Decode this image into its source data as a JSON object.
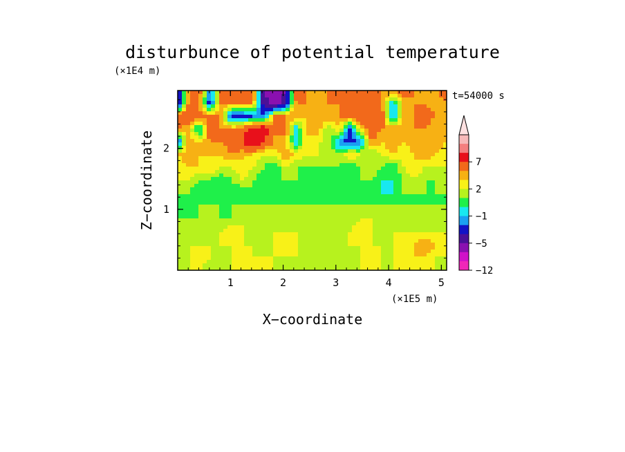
{
  "chart_data": {
    "type": "heatmap",
    "title": "disturbunce of potential temperature",
    "xlabel": "X−coordinate",
    "ylabel": "Z−coordinate",
    "x_unit": "(×1E5 m)",
    "y_unit": "(×1E4 m)",
    "time_label": "t=54000 s",
    "xlim": [
      0,
      5.1
    ],
    "ylim": [
      0,
      2.95
    ],
    "x_ticks": [
      1,
      2,
      3,
      4,
      5
    ],
    "y_ticks": [
      1,
      2
    ],
    "x_minor_step": 0.2,
    "y_minor_step": 0.2,
    "grid": false,
    "legend_position": "right",
    "colorbar": {
      "extend_max": true,
      "labels": [
        {
          "value": "7",
          "level": 7
        },
        {
          "value": "2",
          "level": 2
        },
        {
          "value": "−1",
          "level": -1
        },
        {
          "value": "−5",
          "level": -5
        },
        {
          "value": "−12",
          "level": -12
        }
      ],
      "bins": [
        {
          "upper": 11,
          "color": "#f7b9b9"
        },
        {
          "upper": 9,
          "color": "#f47f7f"
        },
        {
          "upper": 7,
          "color": "#e8101b"
        },
        {
          "upper": 5,
          "color": "#f2691b"
        },
        {
          "upper": 3,
          "color": "#f7b114"
        },
        {
          "upper": 2,
          "color": "#f8f118"
        },
        {
          "upper": 1,
          "color": "#b7f21e"
        },
        {
          "upper": 0,
          "color": "#1ff04a"
        },
        {
          "upper": -1,
          "color": "#18e8f0"
        },
        {
          "upper": -2,
          "color": "#1aa0f2"
        },
        {
          "upper": -3,
          "color": "#1212c6"
        },
        {
          "upper": -5,
          "color": "#4a1098"
        },
        {
          "upper": -7,
          "color": "#8a10b0"
        },
        {
          "upper": -9,
          "color": "#d012c8"
        },
        {
          "upper": -10,
          "color": "#f026b8"
        }
      ],
      "triangle_color": "#fde0e0"
    },
    "field_description": "Height (rows, 0 to 2.95) vs distance (columns, 0 to 5.1) grid of temperature disturbance values; warm near-zero (yellow/orange) lower layer, green/cyan band near Z=1, wavy warm/cold (orange/blue/purple) structures aloft.",
    "grid_nx": 26,
    "grid_nz": 15,
    "values": [
      [
        1,
        1,
        1,
        0,
        1,
        1,
        1,
        1,
        2,
        1,
        1,
        1,
        1,
        0,
        1,
        1,
        1,
        1,
        1,
        1,
        1,
        1,
        1,
        1,
        1,
        1
      ],
      [
        1,
        1,
        2,
        1,
        1,
        1,
        2,
        1,
        1,
        1,
        1,
        1,
        0,
        0,
        1,
        1,
        1,
        1,
        2,
        1,
        1,
        2,
        2,
        2,
        1,
        1
      ],
      [
        1,
        1,
        1,
        1,
        1,
        1,
        1,
        1,
        1,
        1,
        2,
        1,
        1,
        1,
        0,
        1,
        1,
        1,
        1,
        1,
        1,
        2,
        2,
        3,
        2,
        1
      ],
      [
        1,
        1,
        1,
        1,
        1,
        2,
        1,
        1,
        1,
        1,
        1,
        1,
        1,
        1,
        1,
        1,
        1,
        2,
        1,
        1,
        1,
        1,
        1,
        1,
        1,
        1
      ],
      [
        0,
        0,
        0,
        1,
        0,
        0,
        1,
        1,
        1,
        0,
        1,
        1,
        1,
        1,
        1,
        1,
        0,
        1,
        1,
        1,
        1,
        1,
        1,
        1,
        1,
        0
      ],
      [
        0,
        0,
        0,
        0,
        0,
        0,
        0,
        0,
        0,
        0,
        0,
        0,
        0,
        0,
        0,
        0,
        0,
        0,
        0,
        0,
        0,
        0,
        0,
        0,
        0,
        0
      ],
      [
        0,
        0,
        -1,
        -1,
        0,
        -1,
        -1,
        0,
        0,
        0,
        0,
        0,
        0,
        -1,
        0,
        0,
        0,
        -1,
        -1,
        -1,
        -1,
        0,
        0,
        0,
        0,
        0
      ],
      [
        1,
        1,
        0,
        0,
        -1,
        0,
        1,
        0,
        -1,
        0,
        0,
        0,
        0,
        -1,
        0,
        0,
        0,
        0,
        0,
        -1,
        -1,
        0,
        1,
        0,
        0,
        1
      ],
      [
        1,
        2,
        2,
        2,
        1,
        1,
        2,
        1,
        0,
        -1,
        1,
        0,
        0,
        0,
        0,
        0,
        -1,
        0,
        1,
        0,
        -1,
        1,
        2,
        1,
        1,
        1
      ],
      [
        2,
        3,
        2,
        2,
        2,
        3,
        2,
        2,
        1,
        1,
        3,
        2,
        1,
        1,
        1,
        0,
        2,
        1,
        0,
        1,
        2,
        1,
        2,
        3,
        2,
        1
      ],
      [
        -4,
        3,
        2,
        3,
        3,
        4,
        5,
        7,
        5,
        3,
        2,
        -2,
        2,
        1,
        1,
        -3,
        -4,
        -3,
        3,
        2,
        3,
        2,
        3,
        2,
        3,
        2
      ],
      [
        3,
        2,
        -2,
        4,
        3,
        3,
        4,
        6,
        7,
        3,
        4,
        -2,
        2,
        3,
        0,
        2,
        -4,
        2,
        4,
        3,
        3,
        2,
        3,
        3,
        2,
        2
      ],
      [
        4,
        5,
        4,
        3,
        3,
        -4,
        -4,
        -3,
        -3,
        3,
        3,
        3,
        2,
        2,
        3,
        3,
        4,
        5,
        3,
        4,
        -3,
        3,
        3,
        4,
        3,
        3
      ],
      [
        -6,
        3,
        3,
        -4,
        3,
        3,
        3,
        3,
        -6,
        -8,
        -6,
        3,
        3,
        2,
        3,
        3,
        4,
        3,
        3,
        3,
        -2,
        2,
        3,
        3,
        2,
        3
      ],
      [
        -5,
        3,
        4,
        -3,
        3,
        4,
        3,
        4,
        -7,
        -8,
        -7,
        4,
        3,
        3,
        3,
        4,
        3,
        4,
        5,
        3,
        3,
        4,
        3,
        3,
        3,
        4
      ]
    ]
  }
}
